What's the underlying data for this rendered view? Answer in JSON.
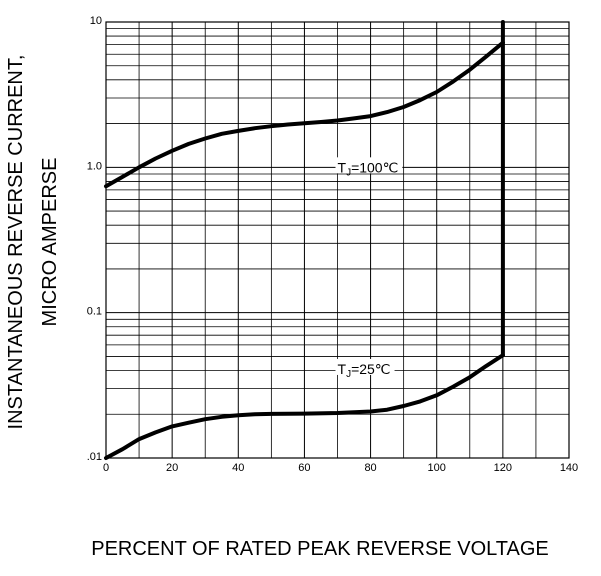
{
  "chart_data": {
    "type": "line",
    "xlabel": "PERCENT OF RATED PEAK REVERSE VOLTAGE",
    "ylabel_line1": "INSTANTANEOUS REVERSE CURRENT,",
    "ylabel_line2": "MICRO AMPERSE",
    "xlim": [
      0,
      140
    ],
    "ylim": [
      0.01,
      10
    ],
    "yscale": "log",
    "grid": true,
    "x_ticks": [
      "0",
      "20",
      "40",
      "60",
      "80",
      "100",
      "120",
      "140"
    ],
    "y_ticks": [
      {
        "value": 10,
        "label": "10"
      },
      {
        "value": 1,
        "label": "1.0"
      },
      {
        "value": 0.1,
        "label": "0.1"
      },
      {
        "value": 0.01,
        "label": ".01"
      }
    ],
    "series": [
      {
        "label": "TJ=100℃",
        "label_main": "T",
        "label_sub": "J",
        "label_rest": "=100℃",
        "label_at": [
          70,
          1
        ],
        "points": [
          [
            0,
            0.74
          ],
          [
            5,
            0.86
          ],
          [
            10,
            1.0
          ],
          [
            15,
            1.15
          ],
          [
            20,
            1.3
          ],
          [
            25,
            1.45
          ],
          [
            30,
            1.58
          ],
          [
            35,
            1.7
          ],
          [
            40,
            1.78
          ],
          [
            45,
            1.86
          ],
          [
            50,
            1.92
          ],
          [
            55,
            1.97
          ],
          [
            60,
            2.01
          ],
          [
            65,
            2.05
          ],
          [
            70,
            2.1
          ],
          [
            75,
            2.17
          ],
          [
            80,
            2.25
          ],
          [
            85,
            2.4
          ],
          [
            90,
            2.6
          ],
          [
            95,
            2.9
          ],
          [
            100,
            3.3
          ],
          [
            105,
            3.9
          ],
          [
            110,
            4.7
          ],
          [
            115,
            5.8
          ],
          [
            120,
            7.2
          ]
        ]
      },
      {
        "label": "TJ=25℃",
        "label_main": "T",
        "label_sub": "J",
        "label_rest": "=25℃",
        "label_at": [
          70,
          0.041
        ],
        "points": [
          [
            0,
            0.01
          ],
          [
            5,
            0.0115
          ],
          [
            10,
            0.0135
          ],
          [
            15,
            0.015
          ],
          [
            20,
            0.0165
          ],
          [
            25,
            0.0175
          ],
          [
            30,
            0.0185
          ],
          [
            35,
            0.0192
          ],
          [
            40,
            0.0197
          ],
          [
            45,
            0.02
          ],
          [
            50,
            0.0201
          ],
          [
            60,
            0.0202
          ],
          [
            70,
            0.0204
          ],
          [
            80,
            0.0209
          ],
          [
            85,
            0.0215
          ],
          [
            90,
            0.0228
          ],
          [
            95,
            0.0245
          ],
          [
            100,
            0.027
          ],
          [
            105,
            0.031
          ],
          [
            110,
            0.036
          ],
          [
            115,
            0.043
          ],
          [
            120,
            0.051
          ]
        ]
      },
      {
        "label": "",
        "points": [
          [
            120,
            0.051
          ],
          [
            120,
            10
          ]
        ]
      }
    ]
  }
}
